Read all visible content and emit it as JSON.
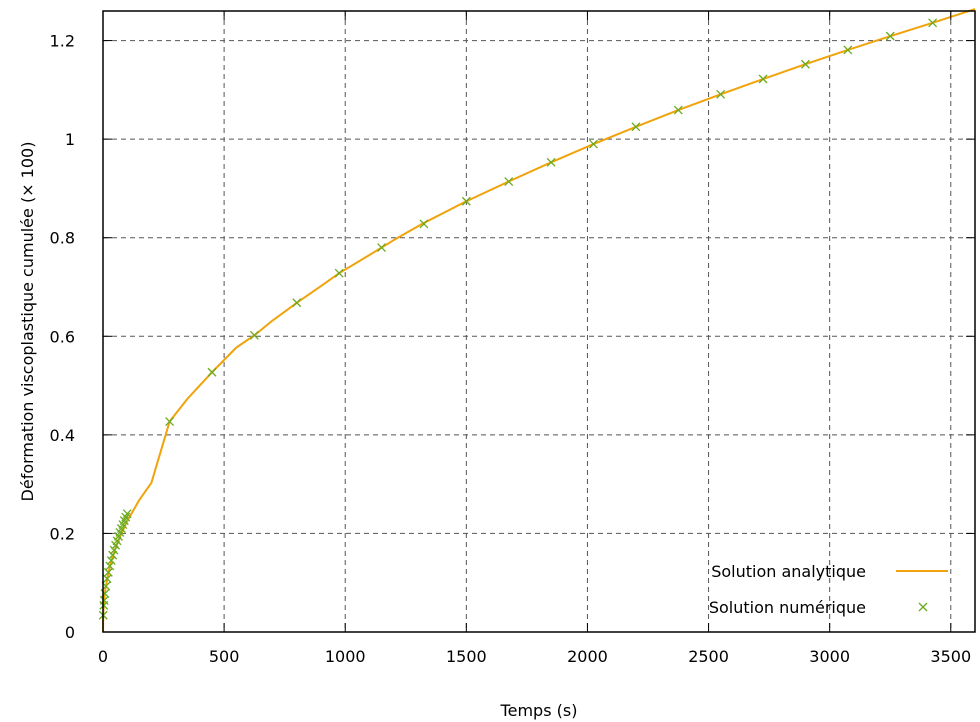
{
  "chart_data": {
    "type": "line",
    "xlabel": "Temps (s)",
    "ylabel": "Déformation viscoplastique cumulée (× 100)",
    "xlim": [
      0,
      3600
    ],
    "ylim": [
      0,
      1.26
    ],
    "x_ticks": [
      0,
      500,
      1000,
      1500,
      2000,
      2500,
      3000,
      3500
    ],
    "y_ticks": [
      0,
      0.2,
      0.4,
      0.6,
      0.8,
      1,
      1.2
    ],
    "x_tick_labels": [
      "0",
      "500",
      "1000",
      "1500",
      "2000",
      "2500",
      "3000",
      "3500"
    ],
    "y_tick_labels": [
      "0",
      "0.2",
      "0.4",
      "0.6",
      "0.8",
      "1",
      "1.2"
    ],
    "grid": true,
    "legend_position": "bottom-right",
    "series": [
      {
        "name": "Solution analytique",
        "style": "line",
        "color": "#f0a30a",
        "x": [
          0,
          1,
          3,
          6,
          10,
          20,
          35,
          50,
          75,
          100,
          150,
          200,
          275,
          350,
          450,
          550,
          625,
          700,
          800,
          900,
          975,
          1100,
          1200,
          1325,
          1500,
          1675,
          1850,
          2025,
          2200,
          2375,
          2550,
          2725,
          2900,
          3075,
          3250,
          3425,
          3600
        ],
        "y": [
          0,
          0.034,
          0.054,
          0.071,
          0.087,
          0.114,
          0.145,
          0.168,
          0.199,
          0.225,
          0.268,
          0.303,
          0.427,
          0.474,
          0.527,
          0.577,
          0.602,
          0.632,
          0.668,
          0.702,
          0.728,
          0.765,
          0.795,
          0.83,
          0.874,
          0.914,
          0.953,
          0.99,
          1.025,
          1.059,
          1.091,
          1.122,
          1.152,
          1.181,
          1.209,
          1.236,
          1.264
        ]
      },
      {
        "name": "Solution numérique",
        "style": "marker",
        "marker": "×",
        "color": "#6aaa1e",
        "x": [
          1,
          3,
          5,
          8,
          12,
          17,
          22,
          28,
          34,
          40,
          46,
          52,
          58,
          64,
          70,
          76,
          82,
          88,
          94,
          100,
          275,
          450,
          625,
          800,
          975,
          1150,
          1325,
          1500,
          1675,
          1850,
          2025,
          2200,
          2375,
          2550,
          2725,
          2900,
          3075,
          3250,
          3425
        ],
        "y": [
          0.034,
          0.054,
          0.064,
          0.078,
          0.093,
          0.108,
          0.121,
          0.134,
          0.145,
          0.156,
          0.166,
          0.176,
          0.185,
          0.194,
          0.202,
          0.21,
          0.218,
          0.226,
          0.233,
          0.24,
          0.427,
          0.527,
          0.602,
          0.668,
          0.728,
          0.78,
          0.828,
          0.874,
          0.914,
          0.953,
          0.99,
          1.025,
          1.059,
          1.091,
          1.122,
          1.152,
          1.181,
          1.209,
          1.236
        ]
      }
    ]
  }
}
